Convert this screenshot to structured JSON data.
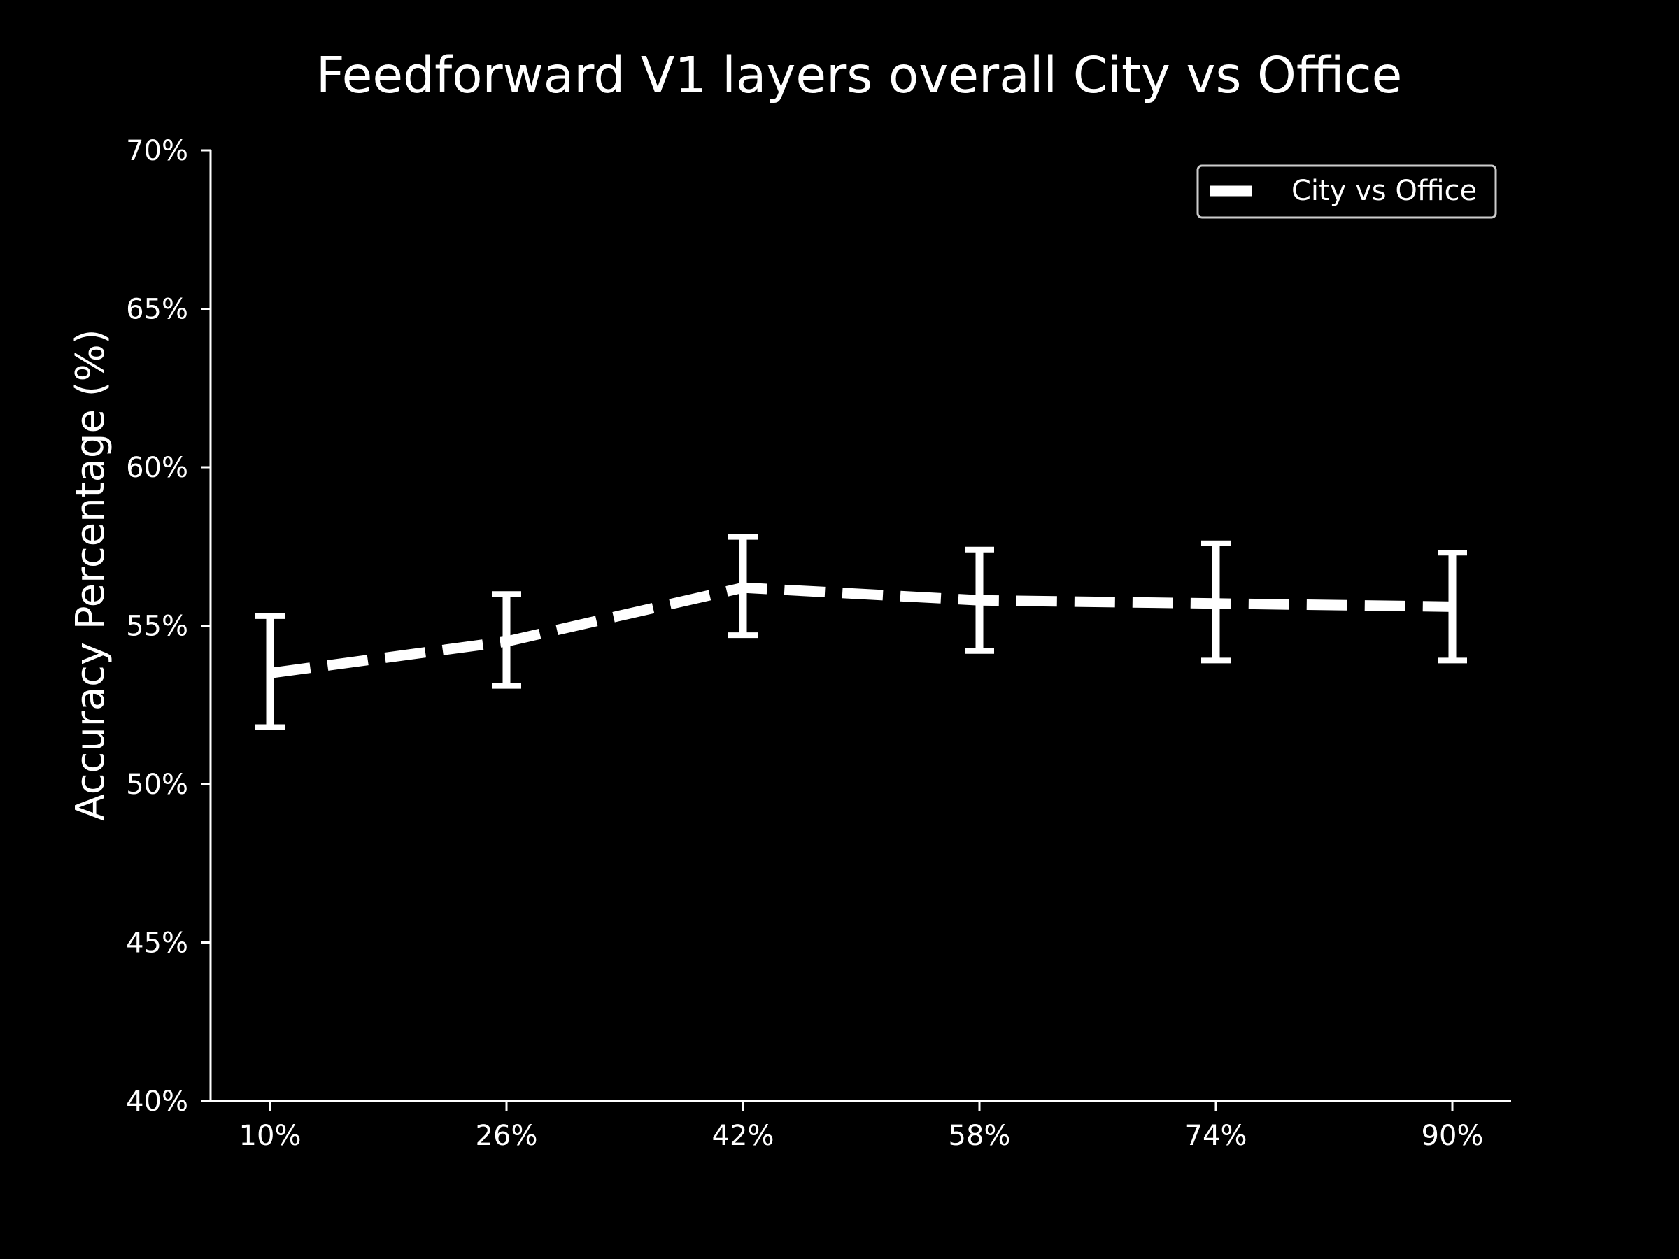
{
  "chart_data": {
    "type": "line",
    "title": "Feedforward V1 layers overall City vs Office",
    "xlabel": "",
    "ylabel": "Accuracy Percentage (%)",
    "categories": [
      "10%",
      "26%",
      "42%",
      "58%",
      "74%",
      "90%"
    ],
    "y_ticks": [
      "40%",
      "45%",
      "50%",
      "55%",
      "60%",
      "65%",
      "70%"
    ],
    "ylim": [
      40,
      70
    ],
    "grid": false,
    "legend_position": "upper-right",
    "series": [
      {
        "name": "City vs Office",
        "values": [
          53.5,
          54.5,
          56.2,
          55.8,
          55.7,
          55.6
        ],
        "error_low": [
          51.8,
          53.1,
          54.7,
          54.2,
          53.9,
          53.9
        ],
        "error_high": [
          55.3,
          56.0,
          57.8,
          57.4,
          57.6,
          57.3
        ],
        "color": "#ffffff",
        "line_style": "dashed"
      }
    ]
  }
}
